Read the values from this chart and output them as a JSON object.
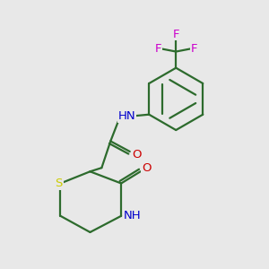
{
  "bg_color": "#e8e8e8",
  "bond_color": "#2d6b2d",
  "bond_width": 1.6,
  "atom_colors": {
    "S": "#cccc00",
    "N": "#0000cc",
    "O": "#cc0000",
    "F": "#cc00cc",
    "C": "#2d6b2d"
  },
  "font_size": 9.5,
  "figsize": [
    3.0,
    3.0
  ],
  "dpi": 100
}
